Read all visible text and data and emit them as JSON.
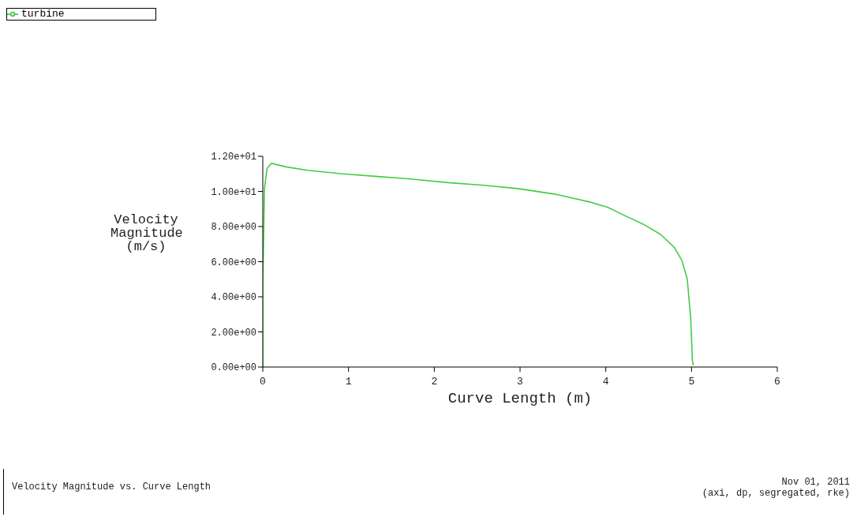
{
  "chart_data": {
    "type": "line",
    "xlabel": "Curve Length (m)",
    "ylabel": "Velocity Magnitude (m/s)",
    "x": [
      0,
      0,
      0.02,
      0.05,
      0.1,
      0.27,
      0.52,
      0.93,
      1.34,
      1.75,
      2.16,
      2.58,
      2.99,
      3.4,
      3.81,
      4.02,
      4.23,
      4.43,
      4.64,
      4.8,
      4.89,
      4.95,
      4.99,
      5.01,
      5.02
    ],
    "series": [
      {
        "name": "turbine",
        "color": "#44cc44",
        "values": [
          0,
          4.7,
          10.2,
          11.3,
          11.6,
          11.4,
          11.2,
          11,
          10.85,
          10.7,
          10.5,
          10.35,
          10.15,
          9.85,
          9.4,
          9.1,
          8.6,
          8.15,
          7.55,
          6.8,
          6.05,
          5,
          2.8,
          0.4,
          0.1
        ]
      }
    ],
    "xlim": [
      0,
      6
    ],
    "xticks": [
      0,
      1,
      2,
      3,
      4,
      5,
      6
    ],
    "ylim": [
      0,
      12
    ],
    "yticks": [
      {
        "value": 0,
        "label": "0.00e+00"
      },
      {
        "value": 2,
        "label": "2.00e+00"
      },
      {
        "value": 4,
        "label": "4.00e+00"
      },
      {
        "value": 6,
        "label": "6.00e+00"
      },
      {
        "value": 8,
        "label": "8.00e+00"
      },
      {
        "value": 10,
        "label": "1.00e+01"
      },
      {
        "value": 12,
        "label": "1.20e+01"
      }
    ],
    "grid": false,
    "legend": "top left",
    "marker": "none",
    "line_style": "solid",
    "annotations": [
      "Velocity Magnitude vs. Curve Length",
      "Nov 01, 2011",
      "(axi, dp, segregated, rke)"
    ]
  }
}
